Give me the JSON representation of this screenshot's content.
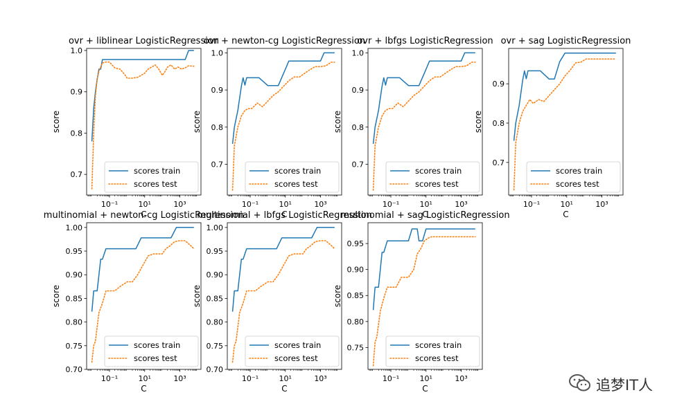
{
  "chart_data": [
    {
      "type": "line",
      "title": "ovr + liblinear LogisticRegression",
      "xlabel": "C",
      "ylabel": "score",
      "xscale": "log",
      "ylim": [
        0.65,
        1.005
      ],
      "yticks": [
        0.7,
        0.8,
        0.9,
        1.0
      ],
      "ytick_labels": [
        "0.7",
        "0.8",
        "0.9",
        "1.0"
      ],
      "xlim_log10": [
        -2.3,
        4.2
      ],
      "xticks_log10": [
        -1,
        1,
        3
      ],
      "xtick_labels": [
        "10⁻¹",
        "10¹",
        "10³"
      ],
      "legend": [
        "scores train",
        "scores test"
      ],
      "legend_loc": "lower right",
      "series": [
        {
          "name": "scores train",
          "style": "solid",
          "color": "#1f77b4",
          "x_log10": [
            -2,
            -1.9,
            -1.8,
            -1.7,
            -1.6,
            -1.5,
            -1.4,
            -1.2,
            -1,
            -0.5,
            0,
            1,
            2,
            3,
            3.3,
            3.5,
            3.7,
            3.8
          ],
          "y": [
            0.78,
            0.86,
            0.9,
            0.93,
            0.955,
            0.955,
            0.978,
            0.978,
            0.978,
            0.978,
            0.978,
            0.978,
            0.978,
            0.978,
            0.978,
            1.0,
            1.0,
            1.0
          ]
        },
        {
          "name": "scores test",
          "style": "dotted",
          "color": "#ff7f0e",
          "x_log10": [
            -2,
            -1.9,
            -1.8,
            -1.7,
            -1.6,
            -1.5,
            -1.4,
            -1.2,
            -1,
            -0.7,
            -0.4,
            -0.1,
            0,
            0.3,
            0.6,
            1,
            1.2,
            1.4,
            1.6,
            1.8,
            2,
            2.1,
            2.3,
            2.5,
            2.7,
            2.9,
            3.1,
            3.3,
            3.5,
            3.7,
            3.8
          ],
          "y": [
            0.665,
            0.8,
            0.89,
            0.93,
            0.95,
            0.96,
            0.97,
            0.972,
            0.972,
            0.958,
            0.955,
            0.94,
            0.933,
            0.933,
            0.935,
            0.945,
            0.955,
            0.96,
            0.965,
            0.955,
            0.94,
            0.945,
            0.96,
            0.965,
            0.955,
            0.96,
            0.955,
            0.958,
            0.963,
            0.962,
            0.962
          ]
        }
      ]
    },
    {
      "type": "line",
      "title": "ovr + newton-cg LogisticRegression",
      "xlabel": "C",
      "ylabel": "score",
      "xscale": "log",
      "ylim": [
        0.617,
        1.012
      ],
      "yticks": [
        0.7,
        0.8,
        0.9,
        1.0
      ],
      "ytick_labels": [
        "0.7",
        "0.8",
        "0.9",
        "1.0"
      ],
      "xlim_log10": [
        -2.3,
        4.2
      ],
      "xticks_log10": [
        -1,
        1,
        3
      ],
      "xtick_labels": [
        "10⁻¹",
        "10¹",
        "10³"
      ],
      "legend": [
        "scores train",
        "scores test"
      ],
      "legend_loc": "lower right",
      "series": [
        {
          "name": "scores train",
          "style": "solid",
          "color": "#1f77b4",
          "x_log10": [
            -2,
            -1.9,
            -1.7,
            -1.5,
            -1.4,
            -1.3,
            -1.2,
            -1.1,
            -0.9,
            -0.5,
            0,
            0.3,
            0.6,
            1,
            1.2,
            1.5,
            2,
            2.5,
            3,
            3.2,
            3.5,
            3.8
          ],
          "y": [
            0.755,
            0.8,
            0.845,
            0.91,
            0.933,
            0.913,
            0.933,
            0.933,
            0.933,
            0.933,
            0.912,
            0.912,
            0.912,
            0.956,
            0.978,
            0.978,
            0.978,
            0.978,
            0.978,
            1.0,
            1.0,
            1.0
          ]
        },
        {
          "name": "scores test",
          "style": "dotted",
          "color": "#ff7f0e",
          "x_log10": [
            -2,
            -1.9,
            -1.7,
            -1.5,
            -1.3,
            -1.1,
            -0.9,
            -0.6,
            -0.3,
            0,
            0.3,
            0.6,
            0.9,
            1.2,
            1.5,
            1.8,
            2.1,
            2.4,
            2.7,
            3,
            3.3,
            3.6,
            3.8
          ],
          "y": [
            0.63,
            0.75,
            0.8,
            0.83,
            0.845,
            0.85,
            0.85,
            0.865,
            0.855,
            0.87,
            0.885,
            0.895,
            0.91,
            0.925,
            0.935,
            0.935,
            0.945,
            0.955,
            0.963,
            0.963,
            0.965,
            0.975,
            0.975
          ]
        }
      ]
    },
    {
      "type": "line",
      "title": "ovr + lbfgs LogisticRegression",
      "xlabel": "C",
      "ylabel": "score",
      "xscale": "log",
      "ylim": [
        0.617,
        1.012
      ],
      "yticks": [
        0.7,
        0.8,
        0.9,
        1.0
      ],
      "ytick_labels": [
        "0.7",
        "0.8",
        "0.9",
        "1.0"
      ],
      "xlim_log10": [
        -2.3,
        4.2
      ],
      "xticks_log10": [
        -1,
        1,
        3
      ],
      "xtick_labels": [
        "10⁻¹",
        "10¹",
        "10³"
      ],
      "legend": [
        "scores train",
        "scores test"
      ],
      "legend_loc": "lower right",
      "series": [
        {
          "name": "scores train",
          "style": "solid",
          "color": "#1f77b4",
          "x_log10": [
            -2,
            -1.9,
            -1.7,
            -1.5,
            -1.4,
            -1.3,
            -1.2,
            -1.1,
            -0.9,
            -0.5,
            0,
            0.3,
            0.6,
            1,
            1.2,
            1.5,
            2,
            2.5,
            3,
            3.2,
            3.5,
            3.8
          ],
          "y": [
            0.755,
            0.8,
            0.845,
            0.91,
            0.933,
            0.913,
            0.933,
            0.933,
            0.933,
            0.933,
            0.912,
            0.912,
            0.912,
            0.956,
            0.978,
            0.978,
            0.978,
            0.978,
            0.978,
            1.0,
            1.0,
            1.0
          ]
        },
        {
          "name": "scores test",
          "style": "dotted",
          "color": "#ff7f0e",
          "x_log10": [
            -2,
            -1.9,
            -1.7,
            -1.5,
            -1.3,
            -1.1,
            -0.9,
            -0.6,
            -0.3,
            0,
            0.3,
            0.6,
            0.9,
            1.2,
            1.5,
            1.8,
            2.1,
            2.4,
            2.7,
            3,
            3.3,
            3.6,
            3.8
          ],
          "y": [
            0.63,
            0.75,
            0.8,
            0.83,
            0.845,
            0.85,
            0.85,
            0.865,
            0.855,
            0.87,
            0.885,
            0.895,
            0.91,
            0.925,
            0.935,
            0.935,
            0.945,
            0.955,
            0.963,
            0.963,
            0.965,
            0.975,
            0.975
          ]
        }
      ]
    },
    {
      "type": "line",
      "title": "ovr + sag LogisticRegression",
      "xlabel": "C",
      "ylabel": "score",
      "xscale": "log",
      "ylim": [
        0.617,
        0.99
      ],
      "yticks": [
        0.7,
        0.8,
        0.9
      ],
      "ytick_labels": [
        "0.7",
        "0.8",
        "0.9"
      ],
      "xlim_log10": [
        -2.3,
        4.2
      ],
      "xticks_log10": [
        -1,
        1,
        3
      ],
      "xtick_labels": [
        "10⁻¹",
        "10¹",
        "10³"
      ],
      "legend": [
        "scores train",
        "scores test"
      ],
      "legend_loc": "lower right",
      "series": [
        {
          "name": "scores train",
          "style": "solid",
          "color": "#1f77b4",
          "x_log10": [
            -2,
            -1.9,
            -1.7,
            -1.5,
            -1.4,
            -1.3,
            -1.2,
            -1.1,
            -0.9,
            -0.5,
            0,
            0.3,
            0.6,
            0.9,
            1.1,
            1.5,
            2,
            2.5,
            3,
            3.5,
            3.8
          ],
          "y": [
            0.755,
            0.8,
            0.845,
            0.91,
            0.933,
            0.913,
            0.933,
            0.933,
            0.933,
            0.933,
            0.912,
            0.912,
            0.956,
            0.978,
            0.978,
            0.978,
            0.978,
            0.978,
            0.978,
            0.978,
            0.978
          ]
        },
        {
          "name": "scores test",
          "style": "dotted",
          "color": "#ff7f0e",
          "x_log10": [
            -2,
            -1.9,
            -1.7,
            -1.5,
            -1.3,
            -1.1,
            -0.9,
            -0.6,
            -0.3,
            0,
            0.3,
            0.6,
            0.9,
            1.2,
            1.5,
            1.8,
            2.1,
            2.5,
            3,
            3.5,
            3.8
          ],
          "y": [
            0.63,
            0.75,
            0.8,
            0.83,
            0.845,
            0.86,
            0.85,
            0.86,
            0.855,
            0.87,
            0.885,
            0.9,
            0.92,
            0.935,
            0.953,
            0.955,
            0.963,
            0.963,
            0.963,
            0.963,
            0.963
          ]
        }
      ]
    },
    {
      "type": "line",
      "title": "multinomial + newton-cg LogisticRegression",
      "xlabel": "C",
      "ylabel": "score",
      "xscale": "log",
      "ylim": [
        0.7,
        1.01
      ],
      "yticks": [
        0.7,
        0.75,
        0.8,
        0.85,
        0.9,
        0.95,
        1.0
      ],
      "ytick_labels": [
        "0.70",
        "0.75",
        "0.80",
        "0.85",
        "0.90",
        "0.95",
        "1.00"
      ],
      "xlim_log10": [
        -2.3,
        4.2
      ],
      "xticks_log10": [
        -1,
        1,
        3
      ],
      "xtick_labels": [
        "10⁻¹",
        "10¹",
        "10³"
      ],
      "legend": [
        "scores train",
        "scores test"
      ],
      "legend_loc": "lower right",
      "series": [
        {
          "name": "scores train",
          "style": "solid",
          "color": "#1f77b4",
          "x_log10": [
            -2,
            -1.9,
            -1.7,
            -1.5,
            -1.4,
            -1.2,
            -1,
            -0.5,
            0,
            0.5,
            0.8,
            1,
            1.5,
            2,
            2.5,
            2.8,
            3,
            3.5,
            3.8
          ],
          "y": [
            0.822,
            0.866,
            0.866,
            0.933,
            0.933,
            0.955,
            0.955,
            0.955,
            0.955,
            0.955,
            0.978,
            0.978,
            0.978,
            0.978,
            0.978,
            1.0,
            1.0,
            1.0,
            1.0
          ]
        },
        {
          "name": "scores test",
          "style": "dotted",
          "color": "#ff7f0e",
          "x_log10": [
            -2,
            -1.9,
            -1.8,
            -1.6,
            -1.4,
            -1.2,
            -1,
            -0.7,
            -0.4,
            0,
            0.3,
            0.6,
            0.9,
            1.2,
            1.5,
            1.8,
            2,
            2.2,
            2.4,
            2.7,
            3,
            3.3,
            3.6,
            3.8
          ],
          "y": [
            0.715,
            0.75,
            0.76,
            0.82,
            0.84,
            0.866,
            0.866,
            0.866,
            0.875,
            0.885,
            0.885,
            0.9,
            0.92,
            0.94,
            0.944,
            0.944,
            0.944,
            0.955,
            0.96,
            0.97,
            0.972,
            0.972,
            0.962,
            0.955
          ]
        }
      ]
    },
    {
      "type": "line",
      "title": "multinomial + lbfgs LogisticRegression",
      "xlabel": "C",
      "ylabel": "score",
      "xscale": "log",
      "ylim": [
        0.7,
        1.01
      ],
      "yticks": [
        0.7,
        0.75,
        0.8,
        0.85,
        0.9,
        0.95,
        1.0
      ],
      "ytick_labels": [
        "0.70",
        "0.75",
        "0.80",
        "0.85",
        "0.90",
        "0.95",
        "1.00"
      ],
      "xlim_log10": [
        -2.3,
        4.2
      ],
      "xticks_log10": [
        -1,
        1,
        3
      ],
      "xtick_labels": [
        "10⁻¹",
        "10¹",
        "10³"
      ],
      "legend": [
        "scores train",
        "scores test"
      ],
      "legend_loc": "lower right",
      "series": [
        {
          "name": "scores train",
          "style": "solid",
          "color": "#1f77b4",
          "x_log10": [
            -2,
            -1.9,
            -1.7,
            -1.5,
            -1.4,
            -1.2,
            -1,
            -0.5,
            0,
            0.5,
            0.8,
            1,
            1.5,
            2,
            2.5,
            2.8,
            3,
            3.5,
            3.8
          ],
          "y": [
            0.822,
            0.866,
            0.866,
            0.933,
            0.933,
            0.955,
            0.955,
            0.955,
            0.955,
            0.955,
            0.978,
            0.978,
            0.978,
            0.978,
            0.978,
            1.0,
            1.0,
            1.0,
            1.0
          ]
        },
        {
          "name": "scores test",
          "style": "dotted",
          "color": "#ff7f0e",
          "x_log10": [
            -2,
            -1.9,
            -1.8,
            -1.6,
            -1.4,
            -1.2,
            -1,
            -0.7,
            -0.4,
            0,
            0.3,
            0.6,
            0.9,
            1.2,
            1.5,
            1.8,
            2,
            2.2,
            2.4,
            2.7,
            3,
            3.3,
            3.6,
            3.8
          ],
          "y": [
            0.715,
            0.75,
            0.76,
            0.82,
            0.84,
            0.866,
            0.866,
            0.866,
            0.875,
            0.885,
            0.885,
            0.9,
            0.92,
            0.94,
            0.944,
            0.944,
            0.944,
            0.955,
            0.96,
            0.97,
            0.972,
            0.972,
            0.962,
            0.955
          ]
        }
      ]
    },
    {
      "type": "line",
      "title": "multinomial + sag LogisticRegression",
      "xlabel": "C",
      "ylabel": "score",
      "xscale": "log",
      "ylim": [
        0.708,
        0.99
      ],
      "yticks": [
        0.75,
        0.8,
        0.85,
        0.9,
        0.95
      ],
      "ytick_labels": [
        "0.75",
        "0.80",
        "0.85",
        "0.90",
        "0.95"
      ],
      "xlim_log10": [
        -2.3,
        4.2
      ],
      "xticks_log10": [
        -1,
        1,
        3
      ],
      "xtick_labels": [
        "10⁻¹",
        "10¹",
        "10³"
      ],
      "legend": [
        "scores train",
        "scores test"
      ],
      "legend_loc": "lower right",
      "series": [
        {
          "name": "scores train",
          "style": "solid",
          "color": "#1f77b4",
          "x_log10": [
            -2,
            -1.9,
            -1.7,
            -1.5,
            -1.4,
            -1.2,
            -1,
            -0.5,
            0,
            0.2,
            0.5,
            0.6,
            0.8,
            1,
            1.2,
            1.5,
            2,
            2.5,
            3,
            3.5,
            3.8
          ],
          "y": [
            0.822,
            0.866,
            0.866,
            0.933,
            0.933,
            0.955,
            0.955,
            0.955,
            0.955,
            0.978,
            0.978,
            0.955,
            0.955,
            0.978,
            0.978,
            0.978,
            0.978,
            0.978,
            0.978,
            0.978,
            0.978
          ]
        },
        {
          "name": "scores test",
          "style": "dotted",
          "color": "#ff7f0e",
          "x_log10": [
            -2,
            -1.9,
            -1.8,
            -1.6,
            -1.4,
            -1.2,
            -1,
            -0.7,
            -0.4,
            0,
            0.3,
            0.5,
            0.7,
            0.9,
            1.1,
            1.3,
            1.6,
            2,
            2.5,
            3,
            3.5,
            3.8
          ],
          "y": [
            0.715,
            0.76,
            0.77,
            0.82,
            0.845,
            0.866,
            0.866,
            0.866,
            0.885,
            0.885,
            0.9,
            0.93,
            0.94,
            0.955,
            0.96,
            0.963,
            0.963,
            0.963,
            0.963,
            0.963,
            0.963,
            0.963
          ]
        }
      ]
    }
  ],
  "watermark": {
    "text": "追梦IT人",
    "icon": "wechat-icon"
  }
}
